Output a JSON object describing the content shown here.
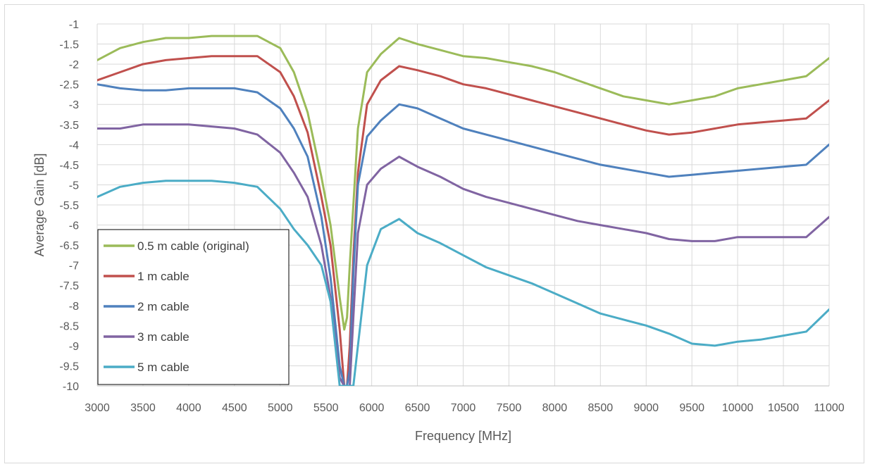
{
  "chart_data": {
    "type": "line",
    "title": "",
    "xlabel": "Frequency [MHz]",
    "ylabel": "Average Gain [dB]",
    "xlim": [
      3000,
      11000
    ],
    "ylim": [
      -10,
      -1
    ],
    "x_ticks": [
      3000,
      3500,
      4000,
      4500,
      5000,
      5500,
      6000,
      6500,
      7000,
      7500,
      8000,
      8500,
      9000,
      9500,
      10000,
      10500,
      11000
    ],
    "y_ticks": [
      -1,
      -1.5,
      -2,
      -2.5,
      -3,
      -3.5,
      -4,
      -4.5,
      -5,
      -5.5,
      -6,
      -6.5,
      -7,
      -7.5,
      -8,
      -8.5,
      -9,
      -9.5,
      -10
    ],
    "grid": true,
    "legend_position": "bottom-left",
    "x": [
      3000,
      3250,
      3500,
      3750,
      4000,
      4250,
      4500,
      4750,
      5000,
      5150,
      5300,
      5450,
      5550,
      5650,
      5700,
      5730,
      5760,
      5800,
      5850,
      5950,
      6100,
      6300,
      6500,
      6750,
      7000,
      7250,
      7500,
      7750,
      8000,
      8250,
      8500,
      8750,
      9000,
      9250,
      9500,
      9750,
      10000,
      10250,
      10500,
      10750,
      11000
    ],
    "series": [
      {
        "name": "0.5 m cable (original)",
        "color": "#9bbb59",
        "values": [
          -1.9,
          -1.6,
          -1.45,
          -1.35,
          -1.35,
          -1.3,
          -1.3,
          -1.3,
          -1.6,
          -2.2,
          -3.2,
          -4.8,
          -6.0,
          -7.8,
          -8.6,
          -8.3,
          -7.0,
          -5.5,
          -3.6,
          -2.2,
          -1.75,
          -1.35,
          -1.5,
          -1.65,
          -1.8,
          -1.85,
          -1.95,
          -2.05,
          -2.2,
          -2.4,
          -2.6,
          -2.8,
          -2.9,
          -3.0,
          -2.9,
          -2.8,
          -2.6,
          -2.5,
          -2.4,
          -2.3,
          -1.85
        ]
      },
      {
        "name": "1 m cable",
        "color": "#c0504d",
        "values": [
          -2.4,
          -2.2,
          -2.0,
          -1.9,
          -1.85,
          -1.8,
          -1.8,
          -1.8,
          -2.2,
          -2.8,
          -3.7,
          -5.3,
          -6.5,
          -8.6,
          -10.0,
          -10.0,
          -9.0,
          -6.8,
          -4.7,
          -3.0,
          -2.4,
          -2.05,
          -2.15,
          -2.3,
          -2.5,
          -2.6,
          -2.75,
          -2.9,
          -3.05,
          -3.2,
          -3.35,
          -3.5,
          -3.65,
          -3.75,
          -3.7,
          -3.6,
          -3.5,
          -3.45,
          -3.4,
          -3.35,
          -2.9
        ]
      },
      {
        "name": "2 m cable",
        "color": "#4f81bd",
        "values": [
          -2.5,
          -2.6,
          -2.65,
          -2.65,
          -2.6,
          -2.6,
          -2.6,
          -2.7,
          -3.1,
          -3.6,
          -4.3,
          -5.8,
          -7.3,
          -9.5,
          -10.0,
          -10.0,
          -9.6,
          -7.2,
          -5.0,
          -3.8,
          -3.4,
          -3.0,
          -3.1,
          -3.35,
          -3.6,
          -3.75,
          -3.9,
          -4.05,
          -4.2,
          -4.35,
          -4.5,
          -4.6,
          -4.7,
          -4.8,
          -4.75,
          -4.7,
          -4.65,
          -4.6,
          -4.55,
          -4.5,
          -4.0
        ]
      },
      {
        "name": "3 m cable",
        "color": "#8064a2",
        "values": [
          -3.6,
          -3.6,
          -3.5,
          -3.5,
          -3.5,
          -3.55,
          -3.6,
          -3.75,
          -4.2,
          -4.7,
          -5.3,
          -6.5,
          -7.8,
          -9.8,
          -10.0,
          -10.0,
          -10.0,
          -8.3,
          -6.2,
          -5.0,
          -4.6,
          -4.3,
          -4.55,
          -4.8,
          -5.1,
          -5.3,
          -5.45,
          -5.6,
          -5.75,
          -5.9,
          -6.0,
          -6.1,
          -6.2,
          -6.35,
          -6.4,
          -6.4,
          -6.3,
          -6.3,
          -6.3,
          -6.3,
          -5.8
        ]
      },
      {
        "name": "5 m cable",
        "color": "#4bacc6",
        "values": [
          -5.3,
          -5.05,
          -4.95,
          -4.9,
          -4.9,
          -4.9,
          -4.95,
          -5.05,
          -5.6,
          -6.1,
          -6.5,
          -7.0,
          -7.9,
          -10.0,
          -10.0,
          -10.0,
          -10.0,
          -10.0,
          -9.0,
          -7.0,
          -6.1,
          -5.85,
          -6.2,
          -6.45,
          -6.75,
          -7.05,
          -7.25,
          -7.45,
          -7.7,
          -7.95,
          -8.2,
          -8.35,
          -8.5,
          -8.7,
          -8.95,
          -9.0,
          -8.9,
          -8.85,
          -8.75,
          -8.65,
          -8.1
        ]
      }
    ]
  }
}
